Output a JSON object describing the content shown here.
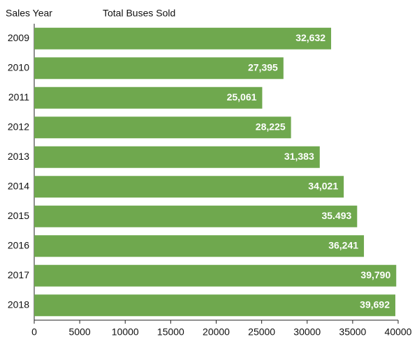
{
  "chart_data": {
    "type": "barh",
    "title": "Total Buses Sold",
    "y_label": "Sales Year",
    "categories": [
      "2009",
      "2010",
      "2011",
      "2012",
      "2013",
      "2014",
      "2015",
      "2016",
      "2017",
      "2018"
    ],
    "values": [
      32632,
      27395,
      25061,
      28225,
      31383,
      34021,
      35493,
      36241,
      39790,
      39692
    ],
    "value_labels": [
      "32,632",
      "27,395",
      "25,061",
      "28,225",
      "31,383",
      "34,021",
      "35.493",
      "36,241",
      "39,790",
      "39,692"
    ],
    "color": "#6fa84e",
    "xlim": [
      0,
      40000
    ],
    "xticks": [
      0,
      5000,
      10000,
      15000,
      20000,
      25000,
      30000,
      35000,
      40000
    ],
    "grid": false
  }
}
